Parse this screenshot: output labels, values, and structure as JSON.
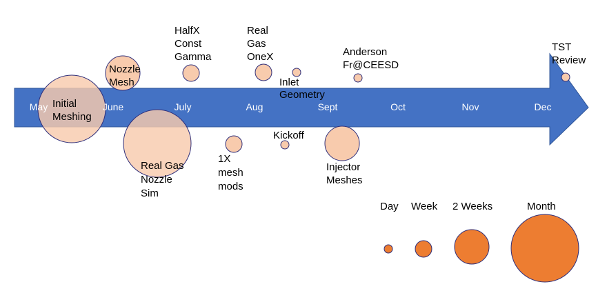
{
  "months": [
    "May",
    "June",
    "July",
    "Aug",
    "Sept",
    "Oct",
    "Nov",
    "Dec"
  ],
  "events": [
    {
      "id": "initial-meshing",
      "label": "Initial\nMeshing",
      "duration": "Month"
    },
    {
      "id": "nozzle-mesh",
      "label": "Nozzle\nMesh",
      "duration": "2 Weeks"
    },
    {
      "id": "real-gas-nozzle-sim",
      "label": "Real Gas\nNozzle\nSim",
      "duration": "Month"
    },
    {
      "id": "halfx-const-gamma",
      "label": "HalfX\nConst\nGamma",
      "duration": "Week"
    },
    {
      "id": "1x-mesh-mods",
      "label": "1X\nmesh\nmods",
      "duration": "Week"
    },
    {
      "id": "real-gas-onex",
      "label": "Real\nGas\nOneX",
      "duration": "Week"
    },
    {
      "id": "inlet-geometry",
      "label": "Inlet\nGeometry",
      "duration": "Day"
    },
    {
      "id": "kickoff",
      "label": "Kickoff",
      "duration": "Day"
    },
    {
      "id": "anderson-fr-ceesd",
      "label": "Anderson\nFr@CEESD",
      "duration": "Day"
    },
    {
      "id": "injector-meshes",
      "label": "Injector\nMeshes",
      "duration": "2 Weeks"
    },
    {
      "id": "tst-review",
      "label": "TST\nReview",
      "duration": "Day"
    }
  ],
  "legend": {
    "items": [
      "Day",
      "Week",
      "2 Weeks",
      "Month"
    ]
  },
  "colors": {
    "arrow": "#4472C4",
    "arrow_stroke": "#2F5597",
    "event_fill": "#F8CBAD",
    "event_stroke": "#2E2E7A",
    "legend_fill": "#ED7D31",
    "legend_stroke": "#2E2E7A",
    "month_text": "#FFFFFF"
  }
}
